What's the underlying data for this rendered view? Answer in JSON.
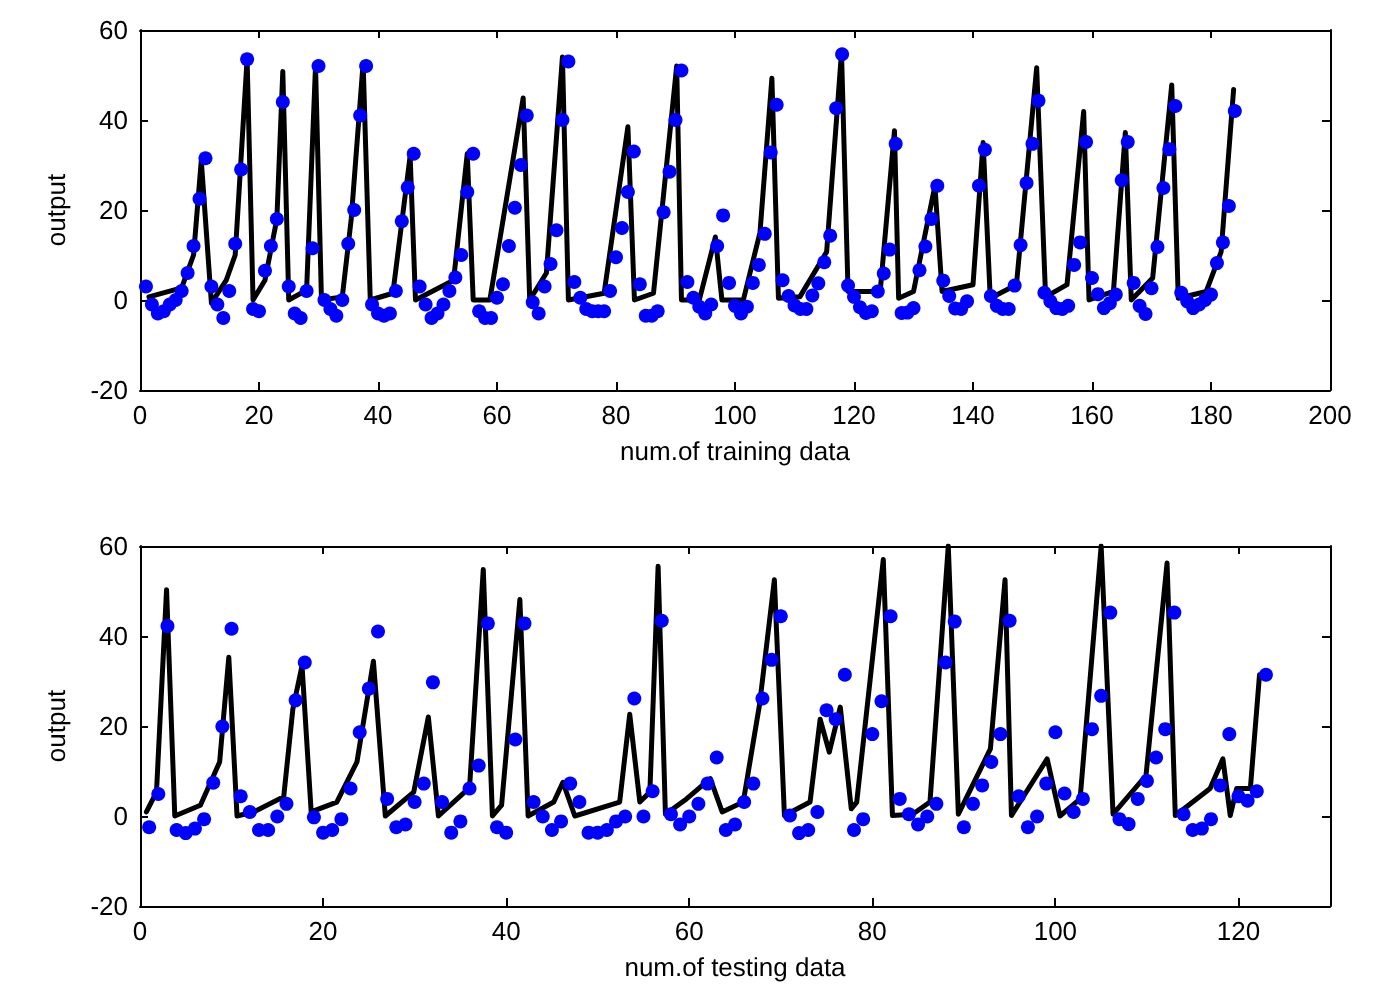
{
  "chart_data": [
    {
      "type": "scatter",
      "xlabel": "num.of training data",
      "ylabel": "output",
      "xlim": [
        0,
        200
      ],
      "xticks": [
        0,
        20,
        40,
        60,
        80,
        100,
        120,
        140,
        160,
        180,
        200
      ],
      "ylim": [
        -20,
        60
      ],
      "yticks": [
        -20,
        0,
        20,
        40,
        60
      ],
      "series": [
        {
          "type": "line",
          "color": "#000000",
          "marker": "none",
          "x": [
            1.5,
            7,
            9,
            10.3,
            12,
            14.5,
            16,
            18,
            19,
            21,
            23,
            24,
            25,
            28,
            29.5,
            30.5,
            34,
            35.5,
            37.5,
            38.7,
            42.5,
            45.4,
            46.3,
            52.7,
            55,
            56,
            58.8,
            64.4,
            65.5,
            68.3,
            71,
            72,
            78,
            82,
            83.1,
            86.3,
            90.2,
            91,
            94,
            96.7,
            97.8,
            101.4,
            104.2,
            106.2,
            107.3,
            110.9,
            115.4,
            117.9,
            119,
            124.4,
            126.8,
            127.5,
            130,
            133.6,
            134.8,
            140,
            141.7,
            142.9,
            147.3,
            150.7,
            152.2,
            155.8,
            158.6,
            159.5,
            163.6,
            165.6,
            166.6,
            170.2,
            173.4,
            174.5,
            179.2,
            181.7,
            183.8
          ],
          "values": [
            0.7,
            2.7,
            10,
            31,
            -0.7,
            4.4,
            10,
            53.6,
            0,
            4.4,
            18,
            50.8,
            0,
            2.2,
            52,
            0,
            0.7,
            18,
            52.7,
            0,
            1.5,
            32,
            0,
            4.4,
            32.5,
            0,
            0,
            44.9,
            0,
            6,
            54,
            0,
            1.5,
            38.5,
            0,
            1.5,
            52,
            0,
            0,
            14,
            0,
            0,
            15,
            49.3,
            0.4,
            0.7,
            10.7,
            55,
            1.9,
            1.9,
            37.6,
            0.4,
            1.9,
            25.4,
            1.9,
            3.4,
            35,
            0.4,
            3.4,
            51.6,
            0.7,
            3.4,
            41.9,
            0,
            1.9,
            37.2,
            0,
            4.9,
            47.8,
            0.4,
            1.9,
            10.7,
            46.8
          ]
        },
        {
          "type": "scatter",
          "color": "#0000ff",
          "marker": "circle",
          "x": [
            1,
            2,
            3,
            4,
            5,
            6,
            7,
            8,
            9,
            10,
            11,
            12,
            13,
            14,
            15,
            16,
            17,
            18,
            19,
            20,
            21,
            22,
            23,
            24,
            25,
            26,
            27,
            28,
            29,
            30,
            31,
            32,
            33,
            34,
            35,
            36,
            37,
            38,
            39,
            40,
            41,
            42,
            43,
            44,
            45,
            46,
            47,
            48,
            49,
            50,
            51,
            52,
            53,
            54,
            55,
            56,
            57,
            58,
            59,
            60,
            61,
            62,
            63,
            64,
            65,
            66,
            67,
            68,
            69,
            70,
            71,
            72,
            73,
            74,
            75,
            76,
            77,
            78,
            79,
            80,
            81,
            82,
            83,
            84,
            85,
            86,
            87,
            88,
            89,
            90,
            91,
            92,
            93,
            94,
            95,
            96,
            97,
            98,
            99,
            100,
            101,
            102,
            103,
            104,
            105,
            106,
            107,
            108,
            109,
            110,
            111,
            112,
            113,
            114,
            115,
            116,
            117,
            118,
            119,
            120,
            121,
            122,
            123,
            124,
            125,
            126,
            127,
            128,
            129,
            130,
            131,
            132,
            133,
            134,
            135,
            136,
            137,
            138,
            139,
            141,
            142,
            143,
            144,
            145,
            146,
            147,
            148,
            149,
            150,
            151,
            152,
            153,
            154,
            155,
            156,
            157,
            158,
            159,
            160,
            161,
            162,
            163,
            164,
            165,
            166,
            167,
            168,
            169,
            170,
            171,
            172,
            173,
            174,
            175,
            176,
            177,
            178,
            179,
            180,
            181,
            182,
            183,
            184
          ],
          "values": [
            3,
            -1,
            -3,
            -2.5,
            -1,
            0,
            2,
            6,
            12,
            22.5,
            31.5,
            3,
            -1,
            -4,
            2,
            12.5,
            29,
            53.5,
            -2,
            -2.5,
            6.5,
            12,
            18,
            44,
            3,
            -3,
            -4,
            2,
            11.5,
            52,
            0,
            -2,
            -3.5,
            0,
            12.5,
            20,
            41,
            52,
            -1,
            -3,
            -3.5,
            -3,
            2,
            17.5,
            25,
            32.5,
            3,
            -1,
            -4,
            -3,
            -1,
            2,
            5,
            10,
            24,
            32.5,
            -2.5,
            -4,
            -4,
            0.5,
            3.5,
            12,
            20.5,
            30,
            41,
            -0.5,
            -3,
            3,
            8,
            15.5,
            40,
            53,
            4,
            0.5,
            -2,
            -2.5,
            -2.5,
            -2.5,
            2,
            9.5,
            16,
            24,
            33,
            3.5,
            -3.5,
            -3.5,
            -2.5,
            19.5,
            28.5,
            40,
            51,
            4,
            0.5,
            -1.5,
            -3,
            -1,
            12,
            18.8,
            3.8,
            -1.3,
            -3,
            -1.5,
            3.8,
            7.8,
            14.7,
            32.8,
            43.4,
            4.4,
            0.9,
            -1.2,
            -2,
            -2,
            1,
            3.7,
            8.4,
            14.3,
            42.6,
            54.6,
            3.2,
            0.7,
            -1.6,
            -2.9,
            -2.5,
            1.9,
            5.9,
            11.2,
            34.7,
            -2.9,
            -2.8,
            -1.8,
            6.6,
            11.9,
            18,
            25.4,
            4.3,
            0.9,
            -1.9,
            -2,
            -0.3,
            25.4,
            33.4,
            0.9,
            -1.3,
            -2,
            -2,
            3.2,
            12.2,
            26,
            34.7,
            44.3,
            1.6,
            -0.3,
            -1.8,
            -2,
            -1.3,
            7.8,
            12.8,
            35.1,
            4.9,
            1.3,
            -1.8,
            -0.7,
            1.2,
            26.6,
            35.1,
            3.8,
            -1.3,
            -3.1,
            2.6,
            11.8,
            24.9,
            33.5,
            43.1,
            1.6,
            -0.3,
            -1.8,
            -1,
            0,
            1.2,
            8.2,
            12.8,
            20.9,
            42
          ]
        }
      ]
    },
    {
      "type": "scatter",
      "xlabel": "num.of testing data",
      "ylabel": "output",
      "xlim": [
        0,
        130
      ],
      "xticks": [
        0,
        20,
        40,
        60,
        80,
        100,
        120
      ],
      "ylim": [
        -20,
        60
      ],
      "yticks": [
        -20,
        0,
        20,
        40,
        60
      ],
      "series": [
        {
          "type": "line",
          "color": "#000000",
          "marker": "none",
          "x": [
            0.7,
            1.8,
            2.9,
            3.8,
            6.6,
            8.7,
            9.7,
            10.6,
            12.4,
            15.7,
            16.7,
            17.7,
            18.7,
            21.5,
            23.7,
            25.5,
            26.8,
            29.9,
            31.5,
            32.6,
            36,
            37.5,
            38.5,
            39.5,
            41.5,
            42.4,
            45.2,
            46.2,
            47.5,
            52.4,
            53.5,
            54.6,
            55.7,
            56.6,
            57.4,
            59.7,
            62.3,
            63.6,
            65.9,
            67.7,
            69.3,
            70.4,
            73.2,
            74.3,
            75.3,
            76.5,
            77.7,
            78.3,
            81.2,
            82.2,
            84.4,
            86.3,
            88.3,
            89.4,
            92.9,
            94.5,
            95.2,
            99.1,
            100.5,
            102.7,
            105,
            106.3,
            109.9,
            112.2,
            113.1,
            116.9,
            118.3,
            119.1,
            119.8,
            121.3,
            122.3
          ],
          "values": [
            0.9,
            5.3,
            50.3,
            0,
            2.4,
            12,
            35.3,
            0,
            0.9,
            4.3,
            23.8,
            33.4,
            0.9,
            3.1,
            12,
            34.4,
            0,
            5.3,
            22,
            0,
            6.3,
            54.8,
            0,
            2.4,
            48.1,
            0,
            3.1,
            7.5,
            0,
            3.1,
            22.6,
            3.1,
            5.3,
            55.5,
            0.4,
            3.8,
            8.3,
            0.9,
            3.1,
            25,
            52.5,
            0.1,
            3.1,
            21.5,
            14.2,
            24.2,
            1.6,
            3.1,
            57,
            0.1,
            0.4,
            3.1,
            60,
            0.4,
            14.9,
            52.5,
            0.1,
            12.7,
            0,
            3.8,
            60,
            0.4,
            9,
            56.2,
            0.1,
            6.1,
            12.7,
            0.1,
            6.1,
            6.1,
            31.4
          ]
        },
        {
          "type": "scatter",
          "color": "#0000ff",
          "marker": "circle",
          "x": [
            1,
            2,
            3,
            4,
            5,
            6,
            7,
            8,
            9,
            10,
            11,
            12,
            13,
            14,
            15,
            16,
            17,
            18,
            19,
            20,
            21,
            22,
            23,
            24,
            25,
            26,
            27,
            28,
            29,
            30,
            31,
            32,
            33,
            34,
            35,
            36,
            37,
            38,
            39,
            40,
            41,
            42,
            43,
            44,
            45,
            46,
            47,
            48,
            49,
            50,
            51,
            52,
            53,
            54,
            55,
            56,
            57,
            58,
            59,
            60,
            61,
            62,
            63,
            64,
            65,
            66,
            67,
            68,
            69,
            70,
            71,
            72,
            73,
            74,
            75,
            76,
            77,
            78,
            79,
            80,
            81,
            82,
            83,
            84,
            85,
            86,
            87,
            88,
            89,
            90,
            91,
            92,
            93,
            94,
            95,
            96,
            97,
            98,
            99,
            100,
            101,
            102,
            103,
            104,
            105,
            106,
            107,
            108,
            109,
            110,
            111,
            112,
            113,
            114,
            115,
            116,
            117,
            118,
            119,
            120,
            121,
            122,
            123
          ],
          "values": [
            -2.5,
            4.9,
            42.2,
            -3.1,
            -3.8,
            -2.8,
            -0.7,
            7.4,
            19.9,
            41.6,
            4.4,
            0.9,
            -3.1,
            -3.1,
            -0.1,
            2.7,
            25.7,
            34.1,
            -0.3,
            -3.7,
            -3.1,
            -0.7,
            6.1,
            18.6,
            28.3,
            41,
            3.8,
            -2.5,
            -1.9,
            3.1,
            7.2,
            29.7,
            3.1,
            -3.7,
            -1.2,
            6.1,
            11.2,
            42.8,
            -2.5,
            -3.7,
            17,
            42.8,
            3.1,
            -0.1,
            -3.1,
            -1.2,
            7.2,
            3.1,
            -3.7,
            -3.7,
            -3.1,
            -1.2,
            -0.1,
            26.1,
            -0.1,
            5.5,
            43.4,
            0.4,
            -1.9,
            -0.1,
            2.7,
            7.2,
            13,
            -3.1,
            -1.9,
            3.1,
            7.2,
            26.1,
            34.7,
            44.4,
            0.1,
            -3.8,
            -3.1,
            0.9,
            23.5,
            21.5,
            31.4,
            -3.1,
            -0.7,
            18.2,
            25.5,
            44.4,
            3.8,
            0.4,
            -1.9,
            -0.1,
            2.7,
            34.1,
            43.2,
            -2.5,
            2.7,
            6.8,
            12,
            18.2,
            43.4,
            4.4,
            -2.5,
            -0.1,
            7.2,
            18.6,
            5,
            0.9,
            3.8,
            19.3,
            26.7,
            45.2,
            -0.7,
            -1.8,
            3.8,
            7.8,
            13,
            19.3,
            45.2,
            0.4,
            -3.1,
            -2.8,
            -0.7,
            6.8,
            18.2,
            4.4,
            3.4,
            5.5,
            31.4
          ]
        }
      ]
    }
  ]
}
